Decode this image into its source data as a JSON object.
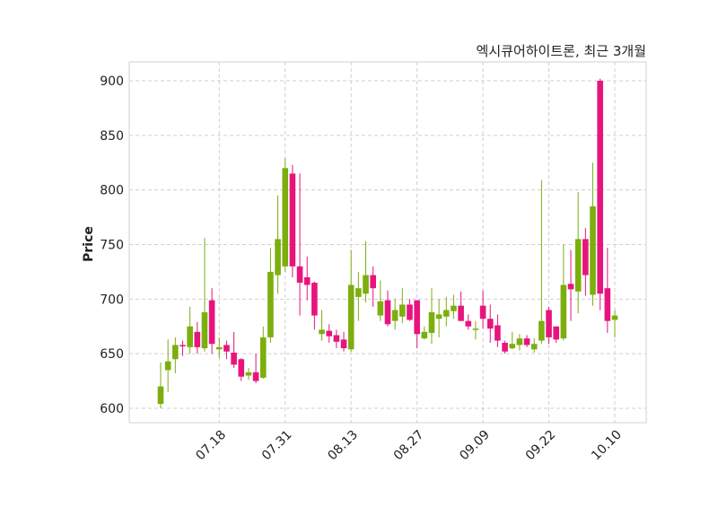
{
  "chart_data": {
    "type": "candlestick",
    "title": "엑시큐어하이트론, 최근 3개월",
    "xlabel": "",
    "ylabel": "Price",
    "ylim": [
      586,
      917
    ],
    "yticks": [
      600,
      650,
      700,
      750,
      800,
      850,
      900
    ],
    "grid": true,
    "colors": {
      "up": "#7cae0e",
      "down": "#e8147d"
    },
    "xticks": [
      {
        "index": 8,
        "label": "07.18"
      },
      {
        "index": 17,
        "label": "07.31"
      },
      {
        "index": 26,
        "label": "08.13"
      },
      {
        "index": 35,
        "label": "08.27"
      },
      {
        "index": 44,
        "label": "09.09"
      },
      {
        "index": 53,
        "label": "09.22"
      },
      {
        "index": 62,
        "label": "10.10"
      }
    ],
    "ohlc": [
      [
        604,
        642,
        600,
        620
      ],
      [
        635,
        663,
        615,
        643
      ],
      [
        645,
        665,
        632,
        658
      ],
      [
        658,
        662,
        648,
        657
      ],
      [
        656,
        693,
        650,
        675
      ],
      [
        670,
        679,
        650,
        656
      ],
      [
        655,
        756,
        652,
        688
      ],
      [
        699,
        710,
        650,
        659
      ],
      [
        654,
        665,
        646,
        656
      ],
      [
        658,
        662,
        645,
        652
      ],
      [
        651,
        670,
        637,
        640
      ],
      [
        645,
        646,
        625,
        629
      ],
      [
        630,
        637,
        626,
        633
      ],
      [
        633,
        650,
        623,
        625
      ],
      [
        628,
        675,
        627,
        665
      ],
      [
        665,
        747,
        660,
        725
      ],
      [
        722,
        795,
        705,
        755
      ],
      [
        730,
        829,
        725,
        820
      ],
      [
        815,
        823,
        720,
        730
      ],
      [
        730,
        815,
        685,
        715
      ],
      [
        720,
        739,
        699,
        713
      ],
      [
        715,
        716,
        672,
        685
      ],
      [
        668,
        690,
        662,
        672
      ],
      [
        671,
        677,
        660,
        666
      ],
      [
        667,
        672,
        655,
        661
      ],
      [
        663,
        670,
        652,
        655
      ],
      [
        654,
        745,
        652,
        713
      ],
      [
        702,
        725,
        680,
        710
      ],
      [
        705,
        753,
        697,
        722
      ],
      [
        722,
        730,
        693,
        710
      ],
      [
        685,
        717,
        680,
        698
      ],
      [
        699,
        708,
        675,
        677
      ],
      [
        680,
        700,
        672,
        690
      ],
      [
        684,
        710,
        678,
        695
      ],
      [
        695,
        700,
        680,
        681
      ],
      [
        699,
        699,
        655,
        668
      ],
      [
        664,
        675,
        663,
        670
      ],
      [
        669,
        710,
        659,
        688
      ],
      [
        682,
        700,
        665,
        686
      ],
      [
        684,
        702,
        675,
        690
      ],
      [
        689,
        704,
        682,
        694
      ],
      [
        694,
        707,
        680,
        680
      ],
      [
        680,
        686,
        672,
        675
      ],
      [
        672,
        680,
        663,
        673
      ],
      [
        694,
        708,
        673,
        682
      ],
      [
        682,
        695,
        660,
        673
      ],
      [
        676,
        686,
        656,
        662
      ],
      [
        660,
        662,
        650,
        652
      ],
      [
        655,
        670,
        654,
        659
      ],
      [
        658,
        668,
        653,
        664
      ],
      [
        664,
        667,
        656,
        658
      ],
      [
        654,
        664,
        651,
        659
      ],
      [
        662,
        809,
        659,
        680
      ],
      [
        690,
        693,
        659,
        665
      ],
      [
        675,
        675,
        660,
        663
      ],
      [
        664,
        750,
        662,
        713
      ],
      [
        714,
        745,
        680,
        709
      ],
      [
        707,
        798,
        687,
        755
      ],
      [
        755,
        765,
        703,
        722
      ],
      [
        704,
        825,
        694,
        785
      ],
      [
        900,
        902,
        690,
        705
      ],
      [
        710,
        747,
        669,
        680
      ],
      [
        681,
        690,
        665,
        685
      ]
    ]
  }
}
